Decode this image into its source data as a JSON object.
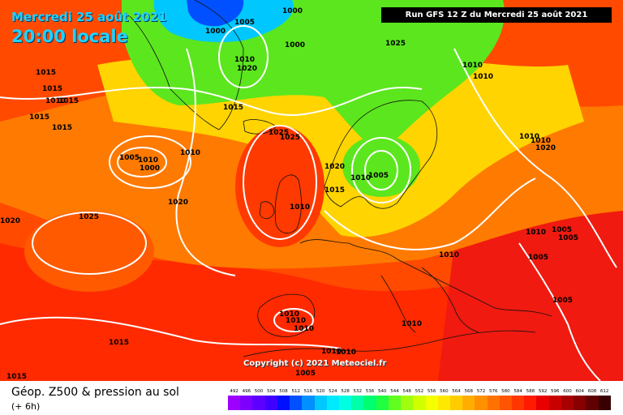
{
  "header": {
    "date": "Mercredi 25 août 2021",
    "time": "20:00 locale",
    "run": "Run GFS 12 Z du Mercredi 25 août 2021"
  },
  "copyright": "Copyright (c) 2021 Meteociel.fr",
  "caption": "Géop. Z500 & pression au sol",
  "sub_caption": "(+ 6h)",
  "isobars": [
    {
      "text": "1000"
    },
    {
      "text": "1000"
    },
    {
      "text": "1005"
    },
    {
      "text": "1010"
    },
    {
      "text": "1020"
    },
    {
      "text": "1000"
    },
    {
      "text": "1015"
    },
    {
      "text": "1025"
    },
    {
      "text": "1015"
    },
    {
      "text": "1015"
    },
    {
      "text": "1015"
    },
    {
      "text": "1015"
    },
    {
      "text": "1015"
    },
    {
      "text": "1010"
    },
    {
      "text": "1010"
    },
    {
      "text": "1005"
    },
    {
      "text": "1000"
    },
    {
      "text": "1010"
    },
    {
      "text": "1020"
    },
    {
      "text": "1025"
    },
    {
      "text": "1025"
    },
    {
      "text": "1020"
    },
    {
      "text": "1025"
    },
    {
      "text": "1020"
    },
    {
      "text": "1015"
    },
    {
      "text": "1010"
    },
    {
      "text": "1005"
    },
    {
      "text": "1010"
    },
    {
      "text": "1010"
    },
    {
      "text": "1010"
    },
    {
      "text": "1010"
    },
    {
      "text": "1005"
    },
    {
      "text": "1005"
    },
    {
      "text": "1010"
    },
    {
      "text": "1005"
    },
    {
      "text": "1005"
    },
    {
      "text": "1010"
    },
    {
      "text": "1010"
    },
    {
      "text": "1010"
    },
    {
      "text": "1010"
    },
    {
      "text": "1010"
    },
    {
      "text": "1010"
    },
    {
      "text": "1015"
    },
    {
      "text": "1015"
    },
    {
      "text": "1020"
    },
    {
      "text": "1010"
    },
    {
      "text": "1005"
    },
    {
      "text": "1010"
    }
  ],
  "scale": {
    "values": [
      "492",
      "496",
      "500",
      "504",
      "508",
      "512",
      "516",
      "520",
      "524",
      "528",
      "532",
      "536",
      "540",
      "544",
      "548",
      "552",
      "556",
      "560",
      "564",
      "568",
      "572",
      "576",
      "580",
      "584",
      "588",
      "592",
      "596",
      "600",
      "604",
      "608",
      "612"
    ],
    "colors": [
      "#9c00ff",
      "#7d00ff",
      "#5e00ff",
      "#3f00ff",
      "#0010ff",
      "#0050ff",
      "#0090ff",
      "#00c8ff",
      "#00eaff",
      "#00ffe0",
      "#00ffa8",
      "#00ff70",
      "#20ff40",
      "#60ff20",
      "#a0ff10",
      "#d0ff00",
      "#f4ff00",
      "#ffe800",
      "#ffcc00",
      "#ffae00",
      "#ff9000",
      "#ff7200",
      "#ff5400",
      "#ff3600",
      "#ff1a00",
      "#e80000",
      "#c80000",
      "#a80000",
      "#880000",
      "#600000",
      "#380000"
    ]
  }
}
